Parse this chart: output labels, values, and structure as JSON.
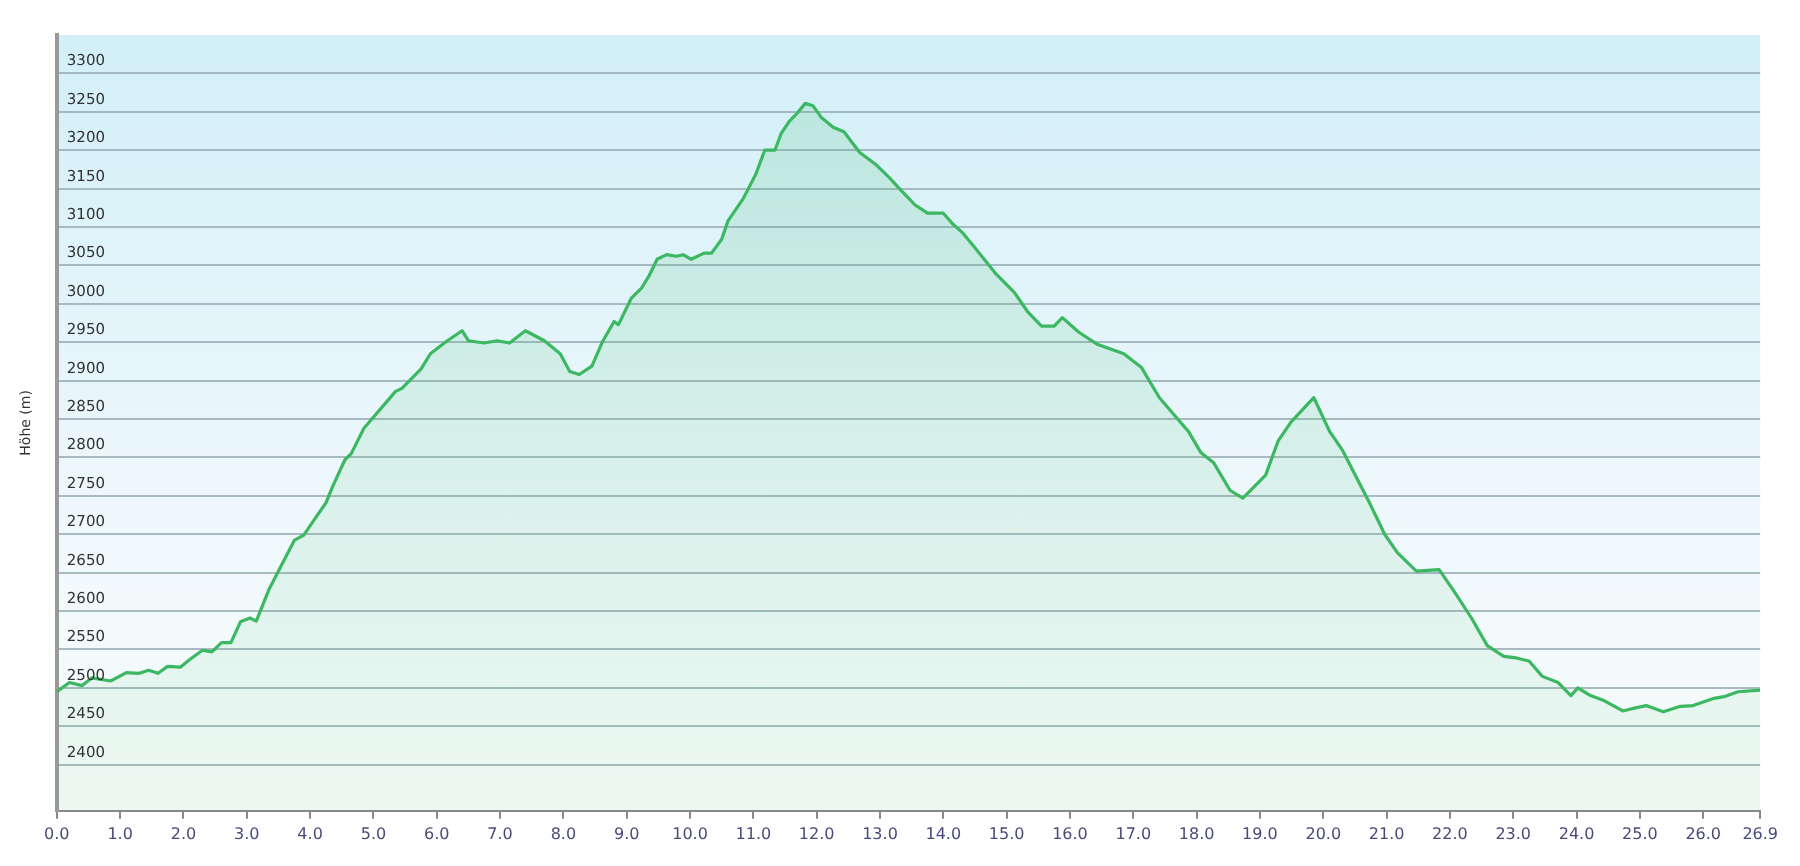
{
  "chart_data": {
    "type": "area",
    "ylabel": "Höhe (m)",
    "grid": "y",
    "xlim": [
      0,
      26.9
    ],
    "ylim": [
      2340,
      3350
    ],
    "xticks": [
      {
        "value": 0,
        "label": "0.0"
      },
      {
        "value": 1,
        "label": "1.0"
      },
      {
        "value": 2,
        "label": "2.0"
      },
      {
        "value": 3,
        "label": "3.0"
      },
      {
        "value": 4,
        "label": "4.0"
      },
      {
        "value": 5,
        "label": "5.0"
      },
      {
        "value": 6,
        "label": "6.0"
      },
      {
        "value": 7,
        "label": "7.0"
      },
      {
        "value": 8,
        "label": "8.0"
      },
      {
        "value": 9,
        "label": "9.0"
      },
      {
        "value": 10,
        "label": "10.0"
      },
      {
        "value": 11,
        "label": "11.0"
      },
      {
        "value": 12,
        "label": "12.0"
      },
      {
        "value": 13,
        "label": "13.0"
      },
      {
        "value": 14,
        "label": "14.0"
      },
      {
        "value": 15,
        "label": "15.0"
      },
      {
        "value": 16,
        "label": "16.0"
      },
      {
        "value": 17,
        "label": "17.0"
      },
      {
        "value": 18,
        "label": "18.0"
      },
      {
        "value": 19,
        "label": "19.0"
      },
      {
        "value": 20,
        "label": "20.0"
      },
      {
        "value": 21,
        "label": "21.0"
      },
      {
        "value": 22,
        "label": "22.0"
      },
      {
        "value": 23,
        "label": "23.0"
      },
      {
        "value": 24,
        "label": "24.0"
      },
      {
        "value": 25,
        "label": "25.0"
      },
      {
        "value": 26,
        "label": "26.0"
      },
      {
        "value": 26.9,
        "label": "26.9"
      }
    ],
    "yticks": [
      2400,
      2450,
      2500,
      2550,
      2600,
      2650,
      2700,
      2750,
      2800,
      2850,
      2900,
      2950,
      3000,
      3050,
      3100,
      3150,
      3200,
      3250,
      3300
    ],
    "series": [
      {
        "color": "#3cb862",
        "x": [
          0,
          0.2,
          0.4,
          0.55,
          0.85,
          1.1,
          1.3,
          1.45,
          1.6,
          1.75,
          1.95,
          2.1,
          2.3,
          2.45,
          2.6,
          2.75,
          2.9,
          3.05,
          3.15,
          3.35,
          3.55,
          3.75,
          3.9,
          4.05,
          4.25,
          4.35,
          4.55,
          4.65,
          4.85,
          5.35,
          5.45,
          5.75,
          5.9,
          6.15,
          6.4,
          6.5,
          6.75,
          6.95,
          7.15,
          7.4,
          7.7,
          7.95,
          8.1,
          8.25,
          8.45,
          8.62,
          8.8,
          8.87,
          9.07,
          9.23,
          9.35,
          9.48,
          9.63,
          9.79,
          9.89,
          10.02,
          10.22,
          10.34,
          10.5,
          10.6,
          10.84,
          11.04,
          11.18,
          11.34,
          11.44,
          11.57,
          11.69,
          11.82,
          11.94,
          12.07,
          12.26,
          12.43,
          12.68,
          12.94,
          13.14,
          13.34,
          13.55,
          13.75,
          14.0,
          14.15,
          14.31,
          14.49,
          14.82,
          15.12,
          15.33,
          15.55,
          15.75,
          15.88,
          16.14,
          16.44,
          16.85,
          17.13,
          17.41,
          17.66,
          17.87,
          18.07,
          18.27,
          18.53,
          18.73,
          19.09,
          19.29,
          19.49,
          19.85,
          20.1,
          20.3,
          20.53,
          20.73,
          20.97,
          21.17,
          21.47,
          21.83,
          22.08,
          22.34,
          22.59,
          22.85,
          23.05,
          23.25,
          23.46,
          23.71,
          23.91,
          24.02,
          24.22,
          24.42,
          24.73,
          24.93,
          25.1,
          25.37,
          25.64,
          25.84,
          26.15,
          26.35,
          26.55,
          26.9
        ],
        "values": [
          2495,
          2507,
          2503,
          2513,
          2509,
          2520,
          2519,
          2523,
          2519,
          2528,
          2527,
          2537,
          2549,
          2547,
          2559,
          2559,
          2586,
          2591,
          2587,
          2628,
          2660,
          2692,
          2699,
          2717,
          2741,
          2761,
          2797,
          2805,
          2838,
          2886,
          2890,
          2915,
          2935,
          2951,
          2965,
          2952,
          2949,
          2952,
          2949,
          2965,
          2952,
          2935,
          2912,
          2908,
          2919,
          2951,
          2977,
          2973,
          3007,
          3020,
          3036,
          3058,
          3064,
          3062,
          3064,
          3058,
          3066,
          3066,
          3084,
          3108,
          3137,
          3169,
          3200,
          3200,
          3222,
          3238,
          3248,
          3261,
          3258,
          3243,
          3230,
          3224,
          3197,
          3181,
          3165,
          3147,
          3129,
          3118,
          3118,
          3104,
          3092,
          3074,
          3040,
          3015,
          2990,
          2971,
          2971,
          2982,
          2963,
          2947,
          2935,
          2917,
          2878,
          2854,
          2834,
          2806,
          2793,
          2757,
          2747,
          2777,
          2822,
          2846,
          2878,
          2834,
          2810,
          2773,
          2741,
          2700,
          2676,
          2652,
          2654,
          2624,
          2591,
          2555,
          2541,
          2539,
          2535,
          2515,
          2507,
          2490,
          2500,
          2490,
          2484,
          2470,
          2474,
          2477,
          2469,
          2476,
          2477,
          2486,
          2489,
          2495,
          2497
        ]
      }
    ]
  }
}
